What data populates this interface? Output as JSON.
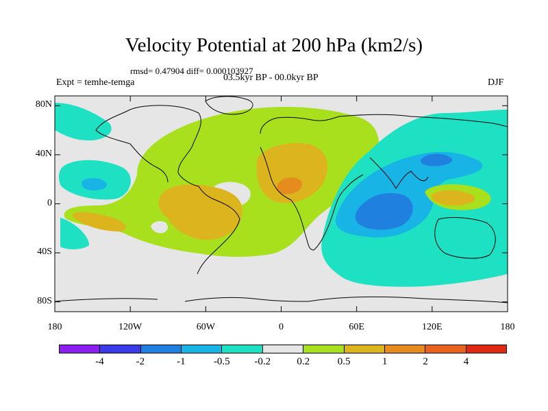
{
  "title": "Velocity Potential at 200 hPa (km2/s)",
  "stats": "rmsd= 0.47904 diff= 0.000103927",
  "experiment": "Expt = temhe-temga",
  "period": "03.5kyr BP - 00.0kyr BP",
  "season": "DJF",
  "y_axis": {
    "labels": [
      "80N",
      "40N",
      "0",
      "40S",
      "80S"
    ],
    "values": [
      80,
      40,
      0,
      -40,
      -80
    ]
  },
  "x_axis": {
    "labels": [
      "180",
      "120W",
      "60W",
      "0",
      "60E",
      "120E",
      "180"
    ],
    "values": [
      -180,
      -120,
      -60,
      0,
      60,
      120,
      180
    ]
  },
  "colorbar": {
    "colors": [
      "#8c1ef0",
      "#3a3ae6",
      "#2080e0",
      "#19b4e6",
      "#1ee0c2",
      "#e6e6e6",
      "#a8e01e",
      "#dcb41e",
      "#e68c1e",
      "#e6641e",
      "#e02814"
    ],
    "labels": [
      "-4",
      "-2",
      "-1",
      "-0.5",
      "-0.2",
      "0.2",
      "0.5",
      "1",
      "2",
      "4"
    ]
  },
  "colors": {
    "background": "#e6e6e6",
    "neg_weak": "#1ee0c2",
    "neg_mid": "#19b4e6",
    "neg_strong": "#2080e0",
    "pos_weak": "#a8e01e",
    "pos_mid": "#dcb41e",
    "pos_strong": "#e68c1e"
  },
  "anomaly_centers": [
    {
      "label": "north-africa-max",
      "lon": 5,
      "lat": 10,
      "level": "2"
    },
    {
      "label": "south-america-max",
      "lon": -65,
      "lat": -5,
      "level": "1"
    },
    {
      "label": "maritime-continent-max",
      "lon": 130,
      "lat": 0,
      "level": "1"
    },
    {
      "label": "indian-ocean-min",
      "lon": 80,
      "lat": -10,
      "level": "-1"
    },
    {
      "label": "north-pacific-min",
      "lon": 125,
      "lat": 35,
      "level": "-1"
    },
    {
      "label": "central-pacific-min",
      "lon": -150,
      "lat": 10,
      "level": "-0.5"
    }
  ]
}
